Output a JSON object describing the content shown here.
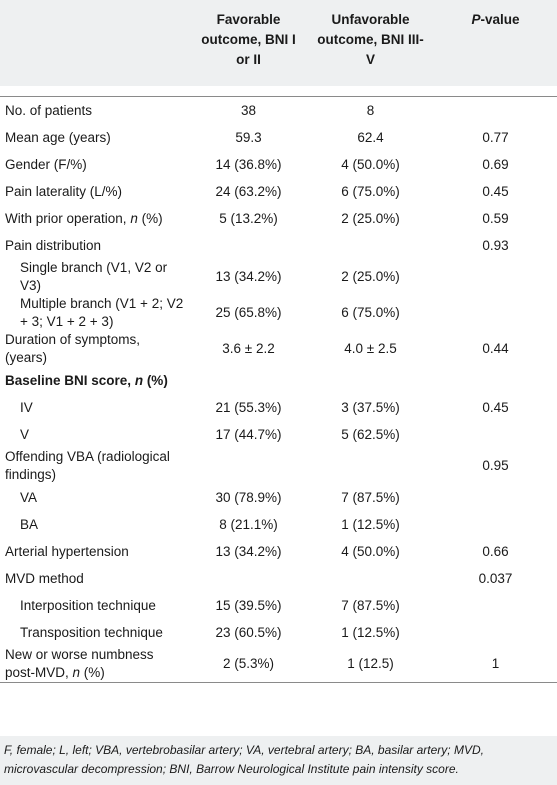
{
  "header": {
    "col0": "",
    "col1": "Favorable outcome, BNI I or II",
    "col2": "Unfavorable outcome, BNI III-V",
    "col3_italic": "P",
    "col3_rest": "-value"
  },
  "rows": [
    {
      "a": "No. of patients",
      "b": "38",
      "c": "8",
      "d": ""
    },
    {
      "a": "Mean age (years)",
      "b": "59.3",
      "c": "62.4",
      "d": "0.77"
    },
    {
      "a": "Gender (F/%)",
      "b": "14 (36.8%)",
      "c": "4 (50.0%)",
      "d": "0.69"
    },
    {
      "a": "Pain laterality (L/%)",
      "b": "24 (63.2%)",
      "c": "6 (75.0%)",
      "d": "0.45"
    },
    {
      "a": "With prior operation, ",
      "a_italic": "n",
      "a_tail": " (%)",
      "b": "5 (13.2%)",
      "c": "2 (25.0%)",
      "d": "0.59"
    },
    {
      "a": "Pain distribution",
      "b": "",
      "c": "",
      "d": "0.93"
    },
    {
      "a": "Single branch (V1, V2 or V3)",
      "b": "13 (34.2%)",
      "c": "2 (25.0%)",
      "d": ""
    },
    {
      "a": "Multiple branch (V1 + 2; V2 + 3; V1 + 2 + 3)",
      "b": "25 (65.8%)",
      "c": "6 (75.0%)",
      "d": ""
    },
    {
      "a": "Duration of symptoms, (years)",
      "b": "3.6 ± 2.2",
      "c": "4.0 ± 2.5",
      "d": "0.44"
    },
    {
      "a": "Baseline BNI score, ",
      "a_italic": "n",
      "a_tail": " (%)",
      "b": "",
      "c": "",
      "d": ""
    },
    {
      "a": "IV",
      "b": "21 (55.3%)",
      "c": "3 (37.5%)",
      "d": "0.45"
    },
    {
      "a": "V",
      "b": "17 (44.7%)",
      "c": "5 (62.5%)",
      "d": ""
    },
    {
      "a": "Offending VBA (radiological findings)",
      "b": "",
      "c": "",
      "d": "0.95"
    },
    {
      "a": "VA",
      "b": "30 (78.9%)",
      "c": "7 (87.5%)",
      "d": ""
    },
    {
      "a": "BA",
      "b": "8 (21.1%)",
      "c": "1 (12.5%)",
      "d": ""
    },
    {
      "a": "Arterial hypertension",
      "b": "13 (34.2%)",
      "c": "4 (50.0%)",
      "d": "0.66"
    },
    {
      "a": "MVD method",
      "b": "",
      "c": "",
      "d": "0.037"
    },
    {
      "a": "Interposition technique",
      "b": "15 (39.5%)",
      "c": "7 (87.5%)",
      "d": ""
    },
    {
      "a": "Transposition technique",
      "b": "23 (60.5%)",
      "c": "1 (12.5%)",
      "d": ""
    },
    {
      "a": "New or worse numbness post-MVD, ",
      "a_italic": "n",
      "a_tail": " (%)",
      "b": "2 (5.3%)",
      "c": "1 (12.5)",
      "d": "1"
    }
  ],
  "footnote": "F, female; L, left; VBA, vertebrobasilar artery; VA, vertebral artery; BA, basilar artery; MVD, microvascular decompression; BNI, Barrow Neurological Institute pain intensity score."
}
